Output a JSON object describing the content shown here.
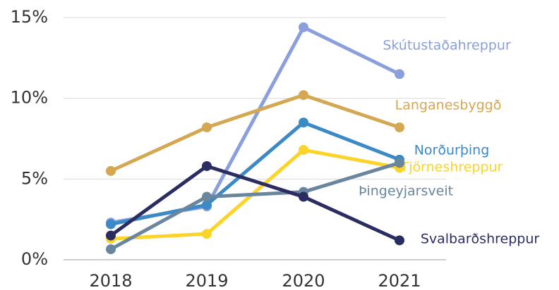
{
  "chart_data": {
    "type": "line",
    "categories": [
      "2018",
      "2019",
      "2020",
      "2021"
    ],
    "series": [
      {
        "name": "Skútustaðahreppur",
        "color": "#8a9fdc",
        "values": [
          2.3,
          3.3,
          14.4,
          11.5
        ]
      },
      {
        "name": "Langanesbyggð",
        "color": "#d4a853",
        "values": [
          5.5,
          8.2,
          10.2,
          8.2
        ]
      },
      {
        "name": "Norðurþing",
        "color": "#3b89c5",
        "values": [
          2.2,
          3.4,
          8.5,
          6.2
        ]
      },
      {
        "name": "Tjörneshreppur",
        "color": "#fcd329",
        "values": [
          1.3,
          1.6,
          6.8,
          5.7
        ]
      },
      {
        "name": "Þingeyjarsveit",
        "color": "#6a869e",
        "values": [
          0.65,
          3.9,
          4.2,
          6.0
        ]
      },
      {
        "name": "Svalbarðshreppur",
        "color": "#2b2d62",
        "values": [
          1.5,
          5.8,
          3.9,
          1.2
        ]
      }
    ],
    "ylim": [
      0,
      15
    ],
    "yticks": [
      {
        "value": 0,
        "label": "0%"
      },
      {
        "value": 5,
        "label": "5%"
      },
      {
        "value": 10,
        "label": "10%"
      },
      {
        "value": 15,
        "label": "15%"
      }
    ],
    "grid": true
  }
}
